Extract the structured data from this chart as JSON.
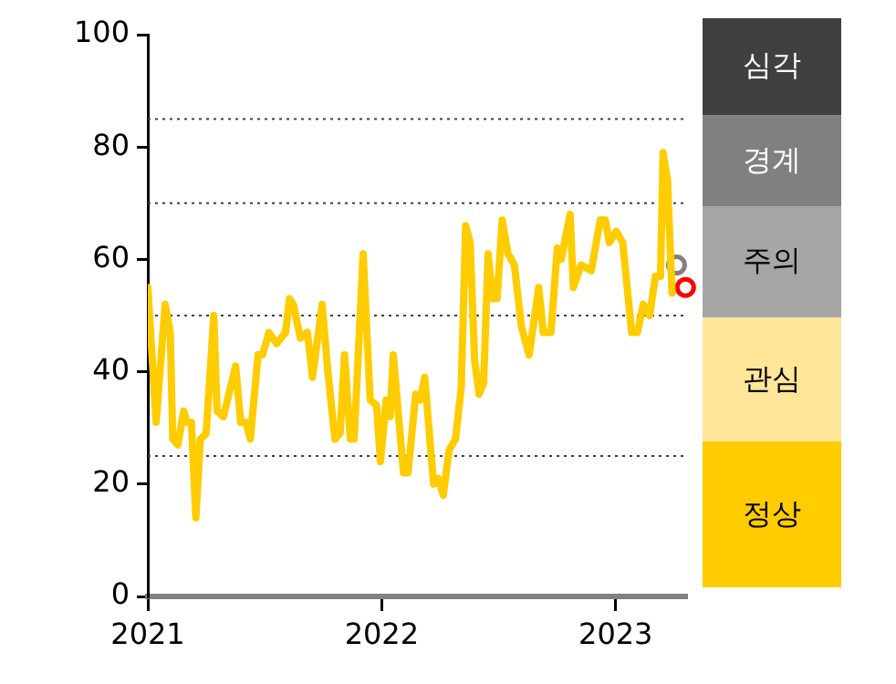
{
  "chart_data": {
    "type": "line",
    "xlim": [
      "2021",
      "2023-04-21"
    ],
    "xticks": [
      "2021",
      "2022",
      "2023"
    ],
    "ylim": [
      0,
      100
    ],
    "yticks": [
      0,
      20,
      40,
      60,
      80,
      100
    ],
    "grid": false,
    "legend": false,
    "line_style": "solid",
    "series": [
      {
        "type": "line",
        "color": "#ffcc00",
        "marker": "none",
        "x": [
          "2021-01-01",
          "2021-01-14",
          "2021-01-28",
          "2021-02-05",
          "2021-02-09",
          "2021-02-17",
          "2021-02-26",
          "2021-03-03",
          "2021-03-10",
          "2021-03-17",
          "2021-03-24",
          "2021-04-02",
          "2021-04-14",
          "2021-04-19",
          "2021-04-29",
          "2021-05-18",
          "2021-05-26",
          "2021-06-03",
          "2021-06-10",
          "2021-06-22",
          "2021-06-29",
          "2021-07-09",
          "2021-07-21",
          "2021-08-04",
          "2021-08-10",
          "2021-08-16",
          "2021-08-27",
          "2021-09-07",
          "2021-09-15",
          "2021-09-30",
          "2021-10-09",
          "2021-10-20",
          "2021-10-28",
          "2021-11-04",
          "2021-11-13",
          "2021-11-19",
          "2021-12-03",
          "2021-12-14",
          "2021-12-24",
          "2021-12-30",
          "2022-01-08",
          "2022-01-14",
          "2022-01-19",
          "2022-02-04",
          "2022-02-11",
          "2022-02-23",
          "2022-03-02",
          "2022-03-09",
          "2022-03-23",
          "2022-03-30",
          "2022-04-07",
          "2022-04-16",
          "2022-04-26",
          "2022-05-05",
          "2022-05-12",
          "2022-05-19",
          "2022-05-26",
          "2022-06-02",
          "2022-06-09",
          "2022-06-16",
          "2022-06-23",
          "2022-06-30",
          "2022-07-08",
          "2022-07-17",
          "2022-07-27",
          "2022-08-07",
          "2022-08-19",
          "2022-09-03",
          "2022-09-10",
          "2022-09-22",
          "2022-10-02",
          "2022-10-08",
          "2022-10-22",
          "2022-10-27",
          "2022-11-08",
          "2022-11-24",
          "2022-12-08",
          "2022-12-16",
          "2022-12-22",
          "2023-01-02",
          "2023-01-12",
          "2023-01-26",
          "2023-02-04",
          "2023-02-13",
          "2023-02-23",
          "2023-03-04",
          "2023-03-12",
          "2023-03-16",
          "2023-03-23",
          "2023-03-30"
        ],
        "values": [
          55,
          31,
          52,
          47,
          28,
          27,
          33,
          31,
          31,
          14,
          28,
          29,
          50,
          33,
          32,
          41,
          31,
          31,
          28,
          43,
          43,
          47,
          45,
          47,
          53,
          52,
          46,
          47,
          39,
          52,
          40,
          28,
          29,
          43,
          28,
          28,
          61,
          35,
          34,
          24,
          35,
          32,
          43,
          22,
          22,
          36,
          35,
          39,
          20,
          21,
          18,
          26,
          28,
          37,
          66,
          63,
          42,
          36,
          38,
          61,
          53,
          53,
          67,
          61,
          59,
          48,
          43,
          55,
          47,
          47,
          62,
          60,
          68,
          55,
          59,
          58,
          67,
          67,
          63,
          65,
          63,
          47,
          47,
          52,
          50,
          57,
          57,
          79,
          74,
          54
        ]
      },
      {
        "type": "scatter",
        "color": "#808080",
        "marker": "circle",
        "x": [
          "2023-04-06"
        ],
        "values": [
          59
        ]
      },
      {
        "type": "scatter",
        "color": "#ff0000",
        "marker": "circle",
        "x": [
          "2023-04-20"
        ],
        "values": [
          55
        ]
      }
    ],
    "ref_lines": [
      {
        "axis": "y",
        "value": 25,
        "color": "#404040",
        "line_style": "dotted"
      },
      {
        "axis": "y",
        "value": 50,
        "color": "#404040",
        "line_style": "dotted"
      },
      {
        "axis": "y",
        "value": 70,
        "color": "#404040",
        "line_style": "dotted"
      },
      {
        "axis": "y",
        "value": 85,
        "color": "#404040",
        "line_style": "dotted"
      }
    ],
    "annotations": [
      "심각",
      "경계",
      "주의",
      "관심",
      "정상"
    ]
  }
}
